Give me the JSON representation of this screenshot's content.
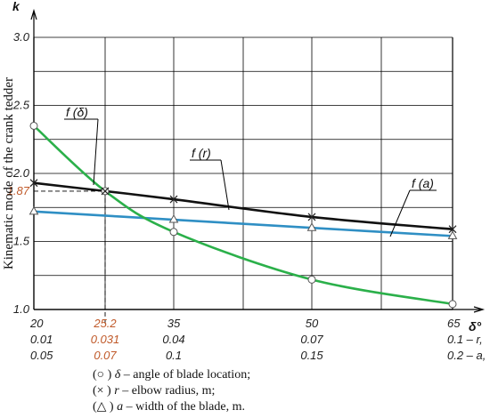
{
  "chart_data": {
    "type": "line",
    "ylabel": "Kinematic mode of the crank tedder",
    "y_axis_symbol": "k",
    "x_axis_symbol": "δ°",
    "ylim": [
      1.0,
      3.0
    ],
    "y_ticks": [
      "1.0",
      "1.5",
      "2.0",
      "2.5",
      "3.0"
    ],
    "x_ticks": [
      {
        "delta": "20",
        "r": "0.01",
        "a": "0.05",
        "highlight": false
      },
      {
        "delta": "25.2",
        "r": "0.031",
        "a": "0.07",
        "highlight": true
      },
      {
        "delta": "35",
        "r": "0.04",
        "a": "0.1",
        "highlight": false
      },
      {
        "delta": "50",
        "r": "0.07",
        "a": "0.15",
        "highlight": false
      },
      {
        "delta": "65",
        "r": "0.1 – r,",
        "a": "0.2 – a,",
        "highlight": false
      }
    ],
    "marked_value": {
      "x": 25.2,
      "y": 1.87,
      "label": "1.87"
    },
    "grid": true,
    "series": [
      {
        "name": "f (δ)",
        "marker": "circle",
        "color": "#2bb04a",
        "x": [
          20,
          25.2,
          35,
          50,
          65
        ],
        "y": [
          2.35,
          1.87,
          1.57,
          1.22,
          1.04
        ]
      },
      {
        "name": "f (r)",
        "marker": "cross",
        "color": "#111111",
        "x": [
          20,
          25.2,
          35,
          50,
          65
        ],
        "y": [
          1.93,
          1.87,
          1.81,
          1.68,
          1.59
        ]
      },
      {
        "name": "f (a)",
        "marker": "triangle",
        "color": "#2f8fc4",
        "x": [
          20,
          35,
          50,
          65
        ],
        "y": [
          1.72,
          1.66,
          1.6,
          1.54
        ]
      }
    ],
    "legend": [
      {
        "symbol": "(○ )",
        "var": "δ",
        "text": " – angle of blade location;"
      },
      {
        "symbol": "(× )",
        "var": "r",
        "text": " – elbow radius, m;"
      },
      {
        "symbol": "(△ )",
        "var": "a",
        "text": " – width of the blade, m."
      }
    ]
  }
}
